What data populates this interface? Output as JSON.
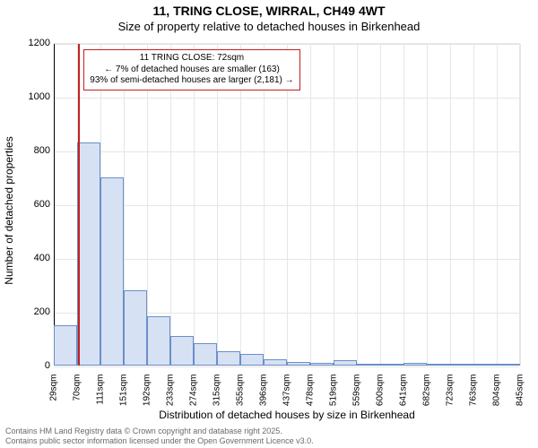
{
  "title_line1": "11, TRING CLOSE, WIRRAL, CH49 4WT",
  "title_line2": "Size of property relative to detached houses in Birkenhead",
  "x_axis_title": "Distribution of detached houses by size in Birkenhead",
  "y_axis_title": "Number of detached properties",
  "footer_line1": "Contains HM Land Registry data © Crown copyright and database right 2025.",
  "footer_line2": "Contains public sector information licensed under the Open Government Licence v3.0.",
  "chart": {
    "type": "histogram",
    "background_color": "#ffffff",
    "grid_color": "#e6e6e6",
    "axis_color": "#000000",
    "bar_fill": "#d6e1f3",
    "bar_border": "#6a8fc7",
    "marker_color": "#c02020",
    "annotation_border": "#c02020",
    "ylim": [
      0,
      1200
    ],
    "ytick_step": 200,
    "x_categories": [
      "29sqm",
      "70sqm",
      "111sqm",
      "151sqm",
      "192sqm",
      "233sqm",
      "274sqm",
      "315sqm",
      "355sqm",
      "396sqm",
      "437sqm",
      "478sqm",
      "519sqm",
      "559sqm",
      "600sqm",
      "641sqm",
      "682sqm",
      "723sqm",
      "763sqm",
      "804sqm",
      "845sqm"
    ],
    "values": [
      150,
      830,
      700,
      280,
      185,
      110,
      85,
      55,
      45,
      25,
      15,
      10,
      20,
      5,
      8,
      10,
      3,
      5,
      3,
      0
    ],
    "marker_category_index": 1,
    "marker_fraction_in_bin": 0.05,
    "annotation": {
      "line1": "11 TRING CLOSE: 72sqm",
      "line2": "← 7% of detached houses are smaller (163)",
      "line3": "93% of semi-detached houses are larger (2,181) →"
    },
    "title_fontsize": 14,
    "subtitle_fontsize": 13,
    "axis_label_fontsize": 12,
    "tick_fontsize": 11
  }
}
